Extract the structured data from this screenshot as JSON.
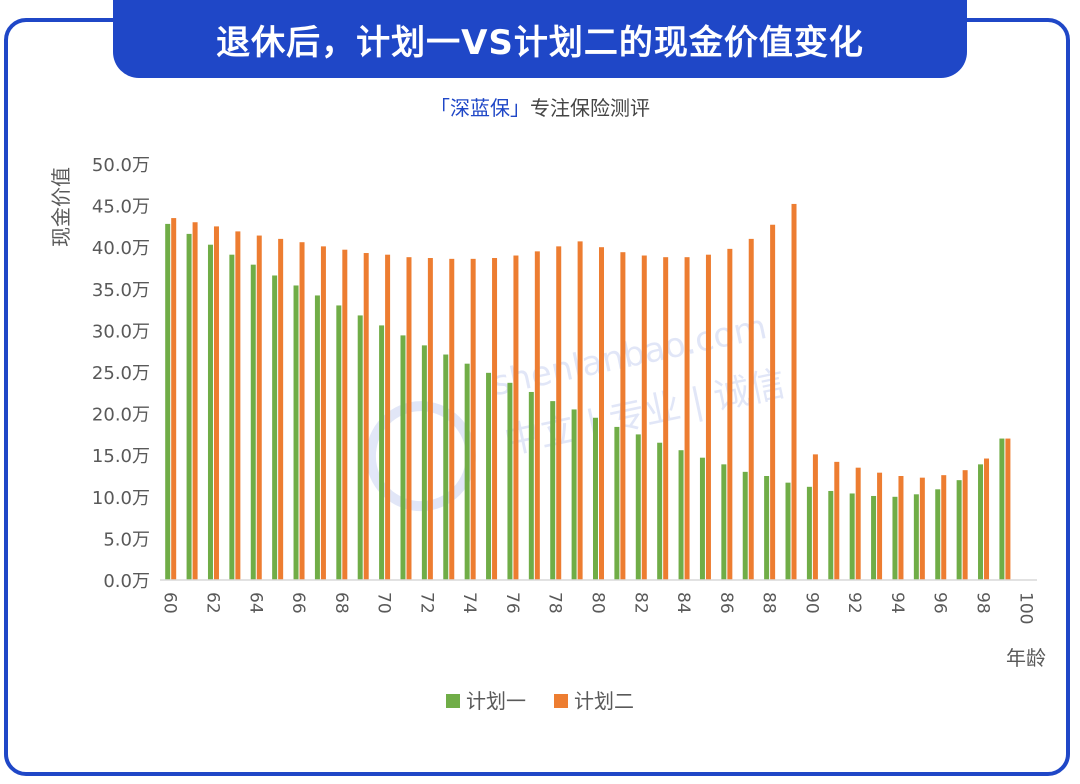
{
  "header": {
    "title": "退休后，计划一VS计划二的现金价值变化",
    "subtitle_brand": "「深蓝保」",
    "subtitle_text": "专注保险测评"
  },
  "watermark": {
    "site": "shenlanbao.com",
    "motto": "中立 | 专业 | 诚信"
  },
  "colors": {
    "primary": "#1f47c7",
    "plan1": "#70ad47",
    "plan2": "#ed7d31"
  },
  "chart_data": {
    "type": "bar",
    "ylabel": "现金价值",
    "xlabel": "年龄",
    "ylim": [
      0,
      50
    ],
    "y_ticks": [
      "0.0万",
      "5.0万",
      "10.0万",
      "15.0万",
      "20.0万",
      "25.0万",
      "30.0万",
      "35.0万",
      "40.0万",
      "45.0万",
      "50.0万"
    ],
    "categories": [
      60,
      61,
      62,
      63,
      64,
      65,
      66,
      67,
      68,
      69,
      70,
      71,
      72,
      73,
      74,
      75,
      76,
      77,
      78,
      79,
      80,
      81,
      82,
      83,
      84,
      85,
      86,
      87,
      88,
      89,
      90,
      91,
      92,
      93,
      94,
      95,
      96,
      97,
      98,
      99,
      100
    ],
    "x_tick_labels": [
      "60",
      "62",
      "64",
      "66",
      "68",
      "70",
      "72",
      "74",
      "76",
      "78",
      "80",
      "82",
      "84",
      "86",
      "88",
      "90",
      "92",
      "94",
      "96",
      "98",
      "100"
    ],
    "legend_position": "bottom",
    "series": [
      {
        "name": "计划一",
        "values": [
          42.8,
          41.6,
          40.3,
          39.1,
          37.9,
          36.6,
          35.4,
          34.2,
          33.0,
          31.8,
          30.6,
          29.4,
          28.2,
          27.1,
          26.0,
          24.9,
          23.7,
          22.6,
          21.5,
          20.5,
          19.5,
          18.4,
          17.5,
          16.5,
          15.6,
          14.7,
          13.9,
          13.0,
          12.5,
          11.7,
          11.2,
          10.7,
          10.4,
          10.1,
          10.0,
          10.3,
          10.9,
          12.0,
          13.9,
          17.0,
          null
        ]
      },
      {
        "name": "计划二",
        "values": [
          43.5,
          43.0,
          42.5,
          41.9,
          41.4,
          41.0,
          40.6,
          40.1,
          39.7,
          39.3,
          39.1,
          38.8,
          38.7,
          38.6,
          38.6,
          38.7,
          39.0,
          39.5,
          40.1,
          40.7,
          40.0,
          39.4,
          39.0,
          38.8,
          38.8,
          39.1,
          39.8,
          41.0,
          42.7,
          45.2,
          15.1,
          14.2,
          13.5,
          12.9,
          12.5,
          12.3,
          12.6,
          13.2,
          14.6,
          17.0,
          null
        ]
      }
    ]
  }
}
